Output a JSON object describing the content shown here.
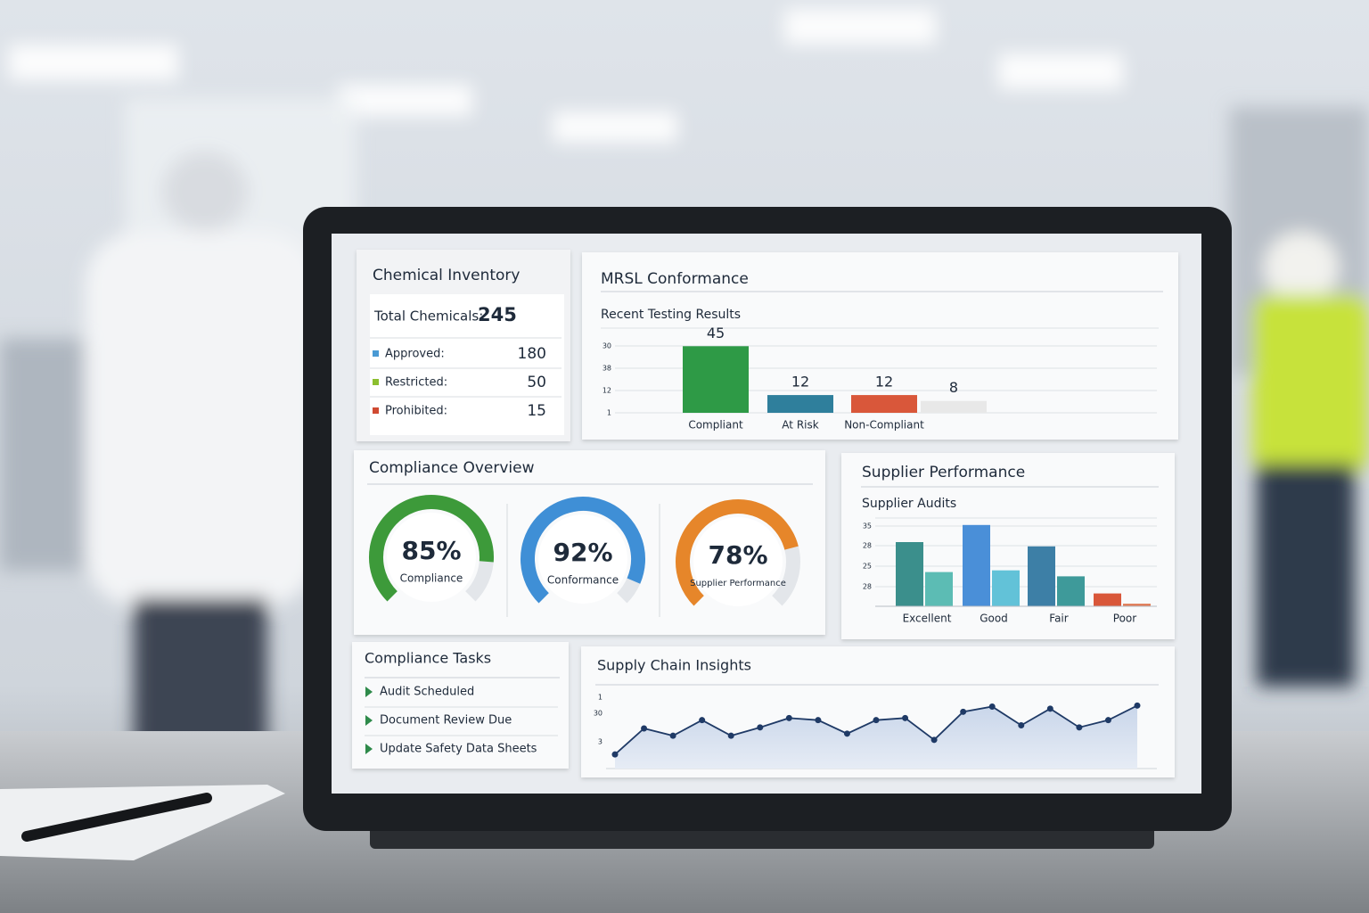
{
  "inventory": {
    "title": "Chemical Inventory",
    "total_label": "Total Chemicals:",
    "total": 245,
    "items": [
      {
        "label": "Approved:",
        "value": 180,
        "color": "#4a9ad4"
      },
      {
        "label": "Restricted:",
        "value": 50,
        "color": "#8cbf2f"
      },
      {
        "label": "Prohibited:",
        "value": 15,
        "color": "#d04a32"
      }
    ]
  },
  "mrsl": {
    "title": "MRSL Conformance",
    "subtitle": "Recent Testing Results",
    "tick_texts": [
      "30",
      "38",
      "12",
      "1"
    ],
    "chart": {
      "type": "bar",
      "categories": [
        "Compliant",
        "At Risk",
        "Non-Compliant",
        null
      ],
      "values": [
        45,
        12,
        12,
        8
      ],
      "colors": [
        "#2e9a46",
        "#2f7f9c",
        "#d9573a",
        "#e8e8e8"
      ],
      "ylim": [
        0,
        50
      ]
    }
  },
  "compliance": {
    "title": "Compliance Overview",
    "lim": [
      0,
      100
    ],
    "gauges": [
      {
        "value": 85,
        "value_label": "85%",
        "label": "Compliance",
        "color": "#3d9a3a"
      },
      {
        "value": 92,
        "value_label": "92%",
        "label": "Conformance",
        "color": "#3f8fd6"
      },
      {
        "value": 78,
        "value_label": "78%",
        "label": "Supplier Performance",
        "color": "#e6862a"
      }
    ]
  },
  "suppliers": {
    "title": "Supplier Performance",
    "subtitle": "Supplier Audits",
    "tick_texts": [
      "35",
      "28",
      "25",
      "28"
    ],
    "chart": {
      "type": "bar",
      "categories": [
        "Excellent",
        "Good",
        "Fair",
        "Poor"
      ],
      "ylim": [
        0,
        100
      ],
      "series": [
        {
          "colors": [
            "#3b8f8c",
            "#4a8fd8",
            "#3d7fa6",
            "#d9573a"
          ],
          "values": [
            75,
            95,
            70,
            15
          ]
        },
        {
          "colors": [
            "#5cbcb4",
            "#62c2d8",
            "#3e9a9a",
            "#e07a55"
          ],
          "values": [
            40,
            42,
            35,
            3
          ]
        }
      ]
    }
  },
  "tasks": {
    "title": "Compliance Tasks",
    "items": [
      "Audit Scheduled",
      "Document Review Due",
      "Update Safety Data Sheets"
    ]
  },
  "insights": {
    "title": "Supply Chain Insights",
    "tick_texts": [
      "1",
      "30",
      "3"
    ],
    "chart": {
      "type": "line",
      "values": [
        5,
        30,
        23,
        38,
        23,
        31,
        40,
        38,
        25,
        38,
        40,
        19,
        46,
        51,
        33,
        49,
        31,
        38,
        52
      ],
      "ylim": [
        0,
        60
      ],
      "color": "#1f3a66"
    }
  }
}
